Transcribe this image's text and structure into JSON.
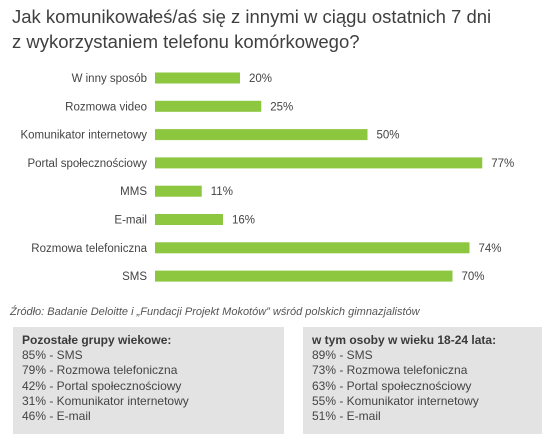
{
  "title_line1": "Jak komunikowałeś/aś się z innymi w ciągu ostatnich 7 dni",
  "title_line2": "z wykorzystaniem telefonu komórkowego?",
  "colors": {
    "bar": "#8dc63f",
    "text": "#3f3f3f",
    "box": "#e3e3e3"
  },
  "chart_data": {
    "type": "bar",
    "orientation": "horizontal",
    "categories": [
      "W inny sposób",
      "Rozmowa video",
      "Komunikator internetowy",
      "Portal społecznościowy",
      "MMS",
      "E-mail",
      "Rozmowa telefoniczna",
      "SMS"
    ],
    "values": [
      20,
      25,
      50,
      77,
      11,
      16,
      74,
      70
    ],
    "value_labels": [
      "20%",
      "25%",
      "50%",
      "77%",
      "11%",
      "16%",
      "74%",
      "70%"
    ],
    "xlim": [
      0,
      100
    ],
    "grid": false,
    "legend": "none"
  },
  "source": "Źródło: Badanie Deloitte i „Fundacji Projekt Mokotów” wśród polskich gimnazjalistów",
  "left_box": {
    "heading": "Pozostałe grupy wiekowe:",
    "items": [
      "85% - SMS",
      "79% - Rozmowa telefoniczna",
      "42% - Portal społecznościowy",
      "31% - Komunikator internetowy",
      "46% - E-mail"
    ]
  },
  "right_box": {
    "heading": "w tym osoby w wieku 18-24 lata:",
    "items": [
      "89% - SMS",
      "73% - Rozmowa telefoniczna",
      "63% - Portal społecznościowy",
      "55% - Komunikator internetowy",
      "51% - E-mail"
    ]
  }
}
